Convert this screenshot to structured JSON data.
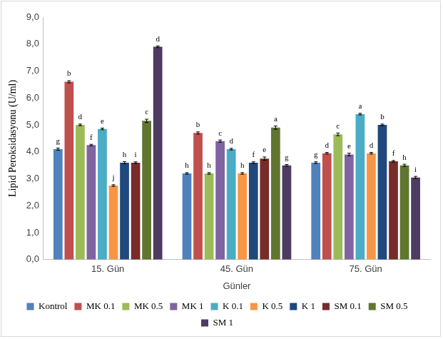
{
  "chart_data": {
    "type": "bar",
    "categories": [
      "15. Gün",
      "45. Gün",
      "75. Gün"
    ],
    "x_label": "Günler",
    "y_label": "Lipid Peroksidasyonu (U/ml)",
    "ylim": [
      0,
      9
    ],
    "yticks": [
      {
        "value": 0,
        "label": "0,0"
      },
      {
        "value": 1,
        "label": "1,0"
      },
      {
        "value": 2,
        "label": "2,0"
      },
      {
        "value": 3,
        "label": "3,0"
      },
      {
        "value": 4,
        "label": "4,0"
      },
      {
        "value": 5,
        "label": "5,0"
      },
      {
        "value": 6,
        "label": "6,0"
      },
      {
        "value": 7,
        "label": "7,0"
      },
      {
        "value": 8,
        "label": "8,0"
      },
      {
        "value": 9,
        "label": "9,0"
      }
    ],
    "grid": false,
    "legend": "bottom",
    "series": [
      {
        "name": "Kontrol",
        "color": "#4f81bd",
        "values": [
          4.1,
          3.2,
          3.6
        ],
        "errors": [
          0.04,
          0.03,
          0.03
        ],
        "letters": [
          "g",
          "h",
          "g"
        ]
      },
      {
        "name": "MK 0.1",
        "color": "#c0504d",
        "values": [
          6.6,
          4.7,
          3.95
        ],
        "errors": [
          0.04,
          0.04,
          0.03
        ],
        "letters": [
          "b",
          "b",
          "d"
        ]
      },
      {
        "name": "MK 0.5",
        "color": "#9bbb59",
        "values": [
          5.0,
          3.2,
          4.65
        ],
        "errors": [
          0.03,
          0.03,
          0.05
        ],
        "letters": [
          "d",
          "h",
          "c"
        ]
      },
      {
        "name": "MK 1",
        "color": "#8064a2",
        "values": [
          4.25,
          4.4,
          3.9
        ],
        "errors": [
          0.03,
          0.04,
          0.05
        ],
        "letters": [
          "f",
          "c",
          "e"
        ]
      },
      {
        "name": "K 0.1",
        "color": "#4bacc6",
        "values": [
          4.85,
          4.1,
          5.4
        ],
        "errors": [
          0.03,
          0.03,
          0.03
        ],
        "letters": [
          "e",
          "d",
          "a"
        ]
      },
      {
        "name": "K 0.5",
        "color": "#f79646",
        "values": [
          2.75,
          3.2,
          3.95
        ],
        "errors": [
          0.03,
          0.03,
          0.03
        ],
        "letters": [
          "j",
          "h",
          "d"
        ]
      },
      {
        "name": "K 1",
        "color": "#1f497d",
        "values": [
          3.6,
          3.6,
          5.0
        ],
        "errors": [
          0.04,
          0.03,
          0.03
        ],
        "letters": [
          "h",
          "f",
          "b"
        ]
      },
      {
        "name": "SM 0.1",
        "color": "#772c2a",
        "values": [
          3.6,
          3.75,
          3.65
        ],
        "errors": [
          0.03,
          0.06,
          0.03
        ],
        "letters": [
          "i",
          "e",
          "f"
        ]
      },
      {
        "name": "SM 0.5",
        "color": "#5f7530",
        "values": [
          5.15,
          4.9,
          3.5
        ],
        "errors": [
          0.06,
          0.06,
          0.04
        ],
        "letters": [
          "c",
          "a",
          "h"
        ]
      },
      {
        "name": "SM 1",
        "color": "#4d3b62",
        "values": [
          7.9,
          3.5,
          3.05
        ],
        "errors": [
          0.03,
          0.03,
          0.04
        ],
        "letters": [
          "d",
          "g",
          "i"
        ]
      }
    ]
  }
}
